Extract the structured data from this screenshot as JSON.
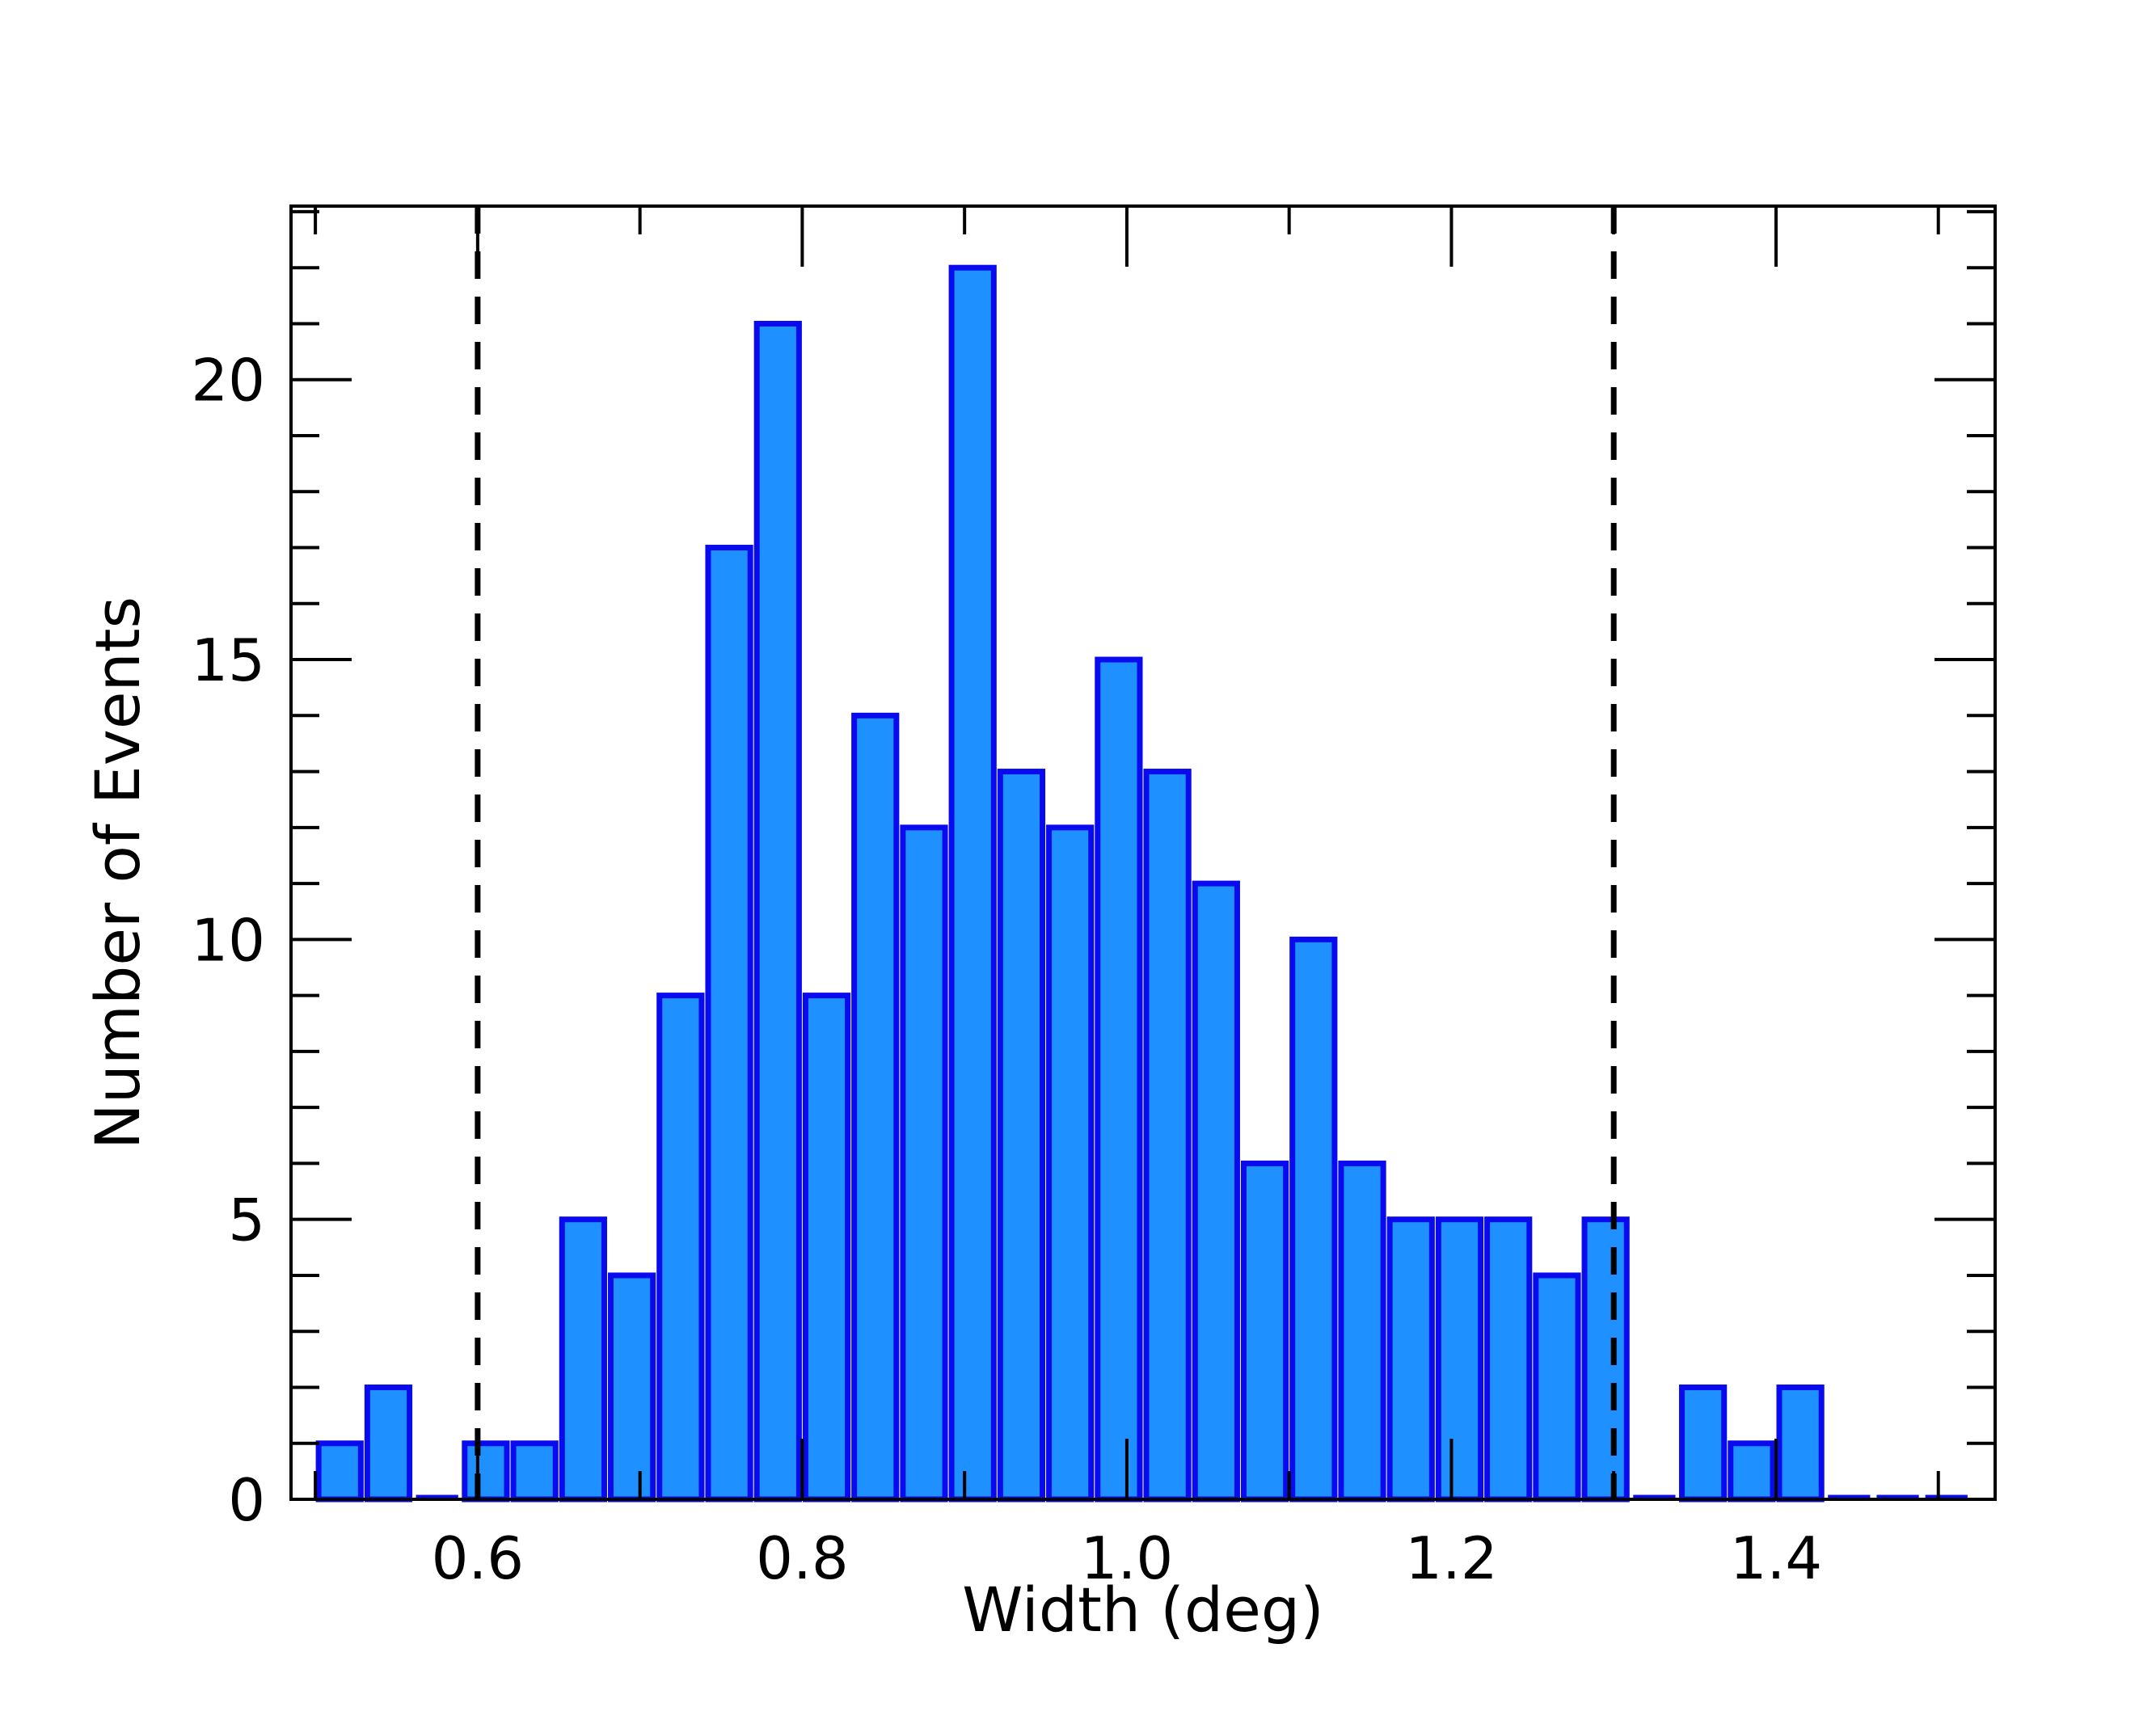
{
  "chart_data": {
    "type": "bar",
    "title": "",
    "xlabel": "Width (deg)",
    "ylabel": "Number of Events",
    "xlim": [
      0.485,
      1.535
    ],
    "ylim": [
      0,
      23.1
    ],
    "x_ticks": [
      0.6,
      0.8,
      1.0,
      1.2,
      1.4
    ],
    "x_tick_labels": [
      "0.6",
      "0.8",
      "1.0",
      "1.2",
      "1.4"
    ],
    "y_ticks": [
      0,
      5,
      10,
      15,
      20
    ],
    "y_tick_labels": [
      "0",
      "5",
      "10",
      "15",
      "20"
    ],
    "bin_width": 0.03,
    "x": [
      0.515,
      0.545,
      0.575,
      0.605,
      0.635,
      0.665,
      0.695,
      0.725,
      0.755,
      0.785,
      0.815,
      0.845,
      0.875,
      0.905,
      0.935,
      0.965,
      0.995,
      1.025,
      1.055,
      1.085,
      1.115,
      1.145,
      1.175,
      1.205,
      1.235,
      1.265,
      1.295,
      1.325,
      1.355,
      1.385,
      1.415,
      1.445,
      1.475,
      1.505
    ],
    "values": [
      1,
      2,
      0,
      1,
      1,
      5,
      4,
      9,
      17,
      21,
      9,
      14,
      12,
      22,
      13,
      12,
      15,
      13,
      11,
      6,
      10,
      6,
      5,
      5,
      5,
      4,
      5,
      0,
      2,
      1,
      2,
      0,
      0,
      0
    ],
    "reference_lines": [
      0.6,
      1.3
    ],
    "grid": false,
    "colors": {
      "bar_fill": "#1e90ff",
      "bar_edge": "#0a0aee",
      "reference_line": "#000000"
    }
  }
}
